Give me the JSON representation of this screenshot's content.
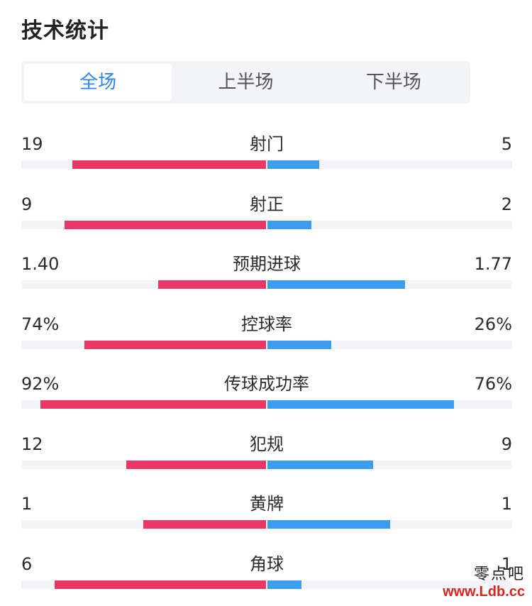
{
  "page_title": "技术统计",
  "tabs": [
    {
      "label": "全场",
      "active": true
    },
    {
      "label": "上半场",
      "active": false
    },
    {
      "label": "下半场",
      "active": false
    }
  ],
  "colors": {
    "home": "#ea3766",
    "away": "#3c9df0",
    "active_tab": "#2f86e6"
  },
  "stats": [
    {
      "label": "射门",
      "home": "19",
      "away": "5",
      "home_fill": 0.79,
      "away_fill": 0.21
    },
    {
      "label": "射正",
      "home": "9",
      "away": "2",
      "home_fill": 0.82,
      "away_fill": 0.18
    },
    {
      "label": "预期进球",
      "home": "1.40",
      "away": "1.77",
      "home_fill": 0.44,
      "away_fill": 0.56
    },
    {
      "label": "控球率",
      "home": "74%",
      "away": "26%",
      "home_fill": 0.74,
      "away_fill": 0.26
    },
    {
      "label": "传球成功率",
      "home": "92%",
      "away": "76%",
      "home_fill": 0.92,
      "away_fill": 0.76
    },
    {
      "label": "犯规",
      "home": "12",
      "away": "9",
      "home_fill": 0.57,
      "away_fill": 0.43
    },
    {
      "label": "黄牌",
      "home": "1",
      "away": "1",
      "home_fill": 0.5,
      "away_fill": 0.5
    },
    {
      "label": "角球",
      "home": "6",
      "away": "1",
      "home_fill": 0.86,
      "away_fill": 0.14
    }
  ],
  "watermark": {
    "name": "零点吧",
    "url": "www.Ldb.cc"
  }
}
